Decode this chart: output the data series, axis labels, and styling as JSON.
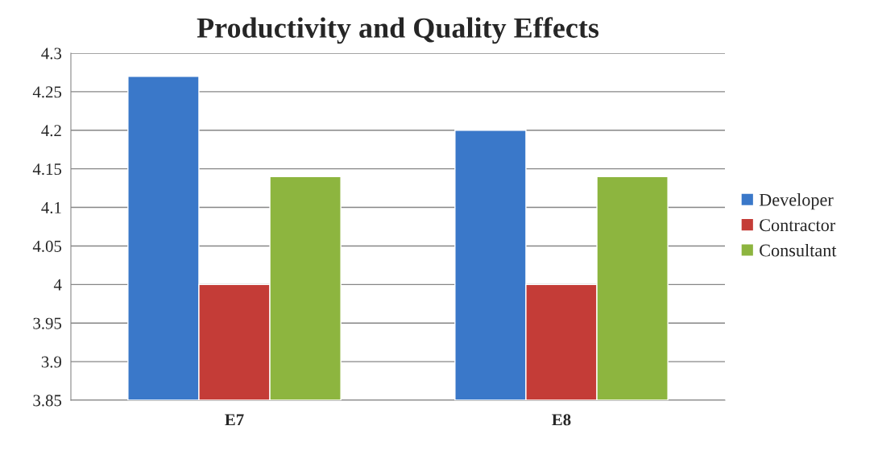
{
  "chart_data": {
    "type": "bar",
    "title": "Productivity and Quality Effects",
    "categories": [
      "E7",
      "E8"
    ],
    "series": [
      {
        "name": "Developer",
        "color": "#3a78c9",
        "values": [
          4.27,
          4.2
        ]
      },
      {
        "name": "Contractor",
        "color": "#c43c37",
        "values": [
          4.0,
          4.0
        ]
      },
      {
        "name": "Consultant",
        "color": "#8db53f",
        "values": [
          4.14,
          4.14
        ]
      }
    ],
    "ylim": [
      3.85,
      4.3
    ],
    "yticks": [
      3.85,
      3.9,
      3.95,
      4,
      4.05,
      4.1,
      4.15,
      4.2,
      4.25,
      4.3
    ],
    "grid": "y",
    "legend": "right"
  }
}
